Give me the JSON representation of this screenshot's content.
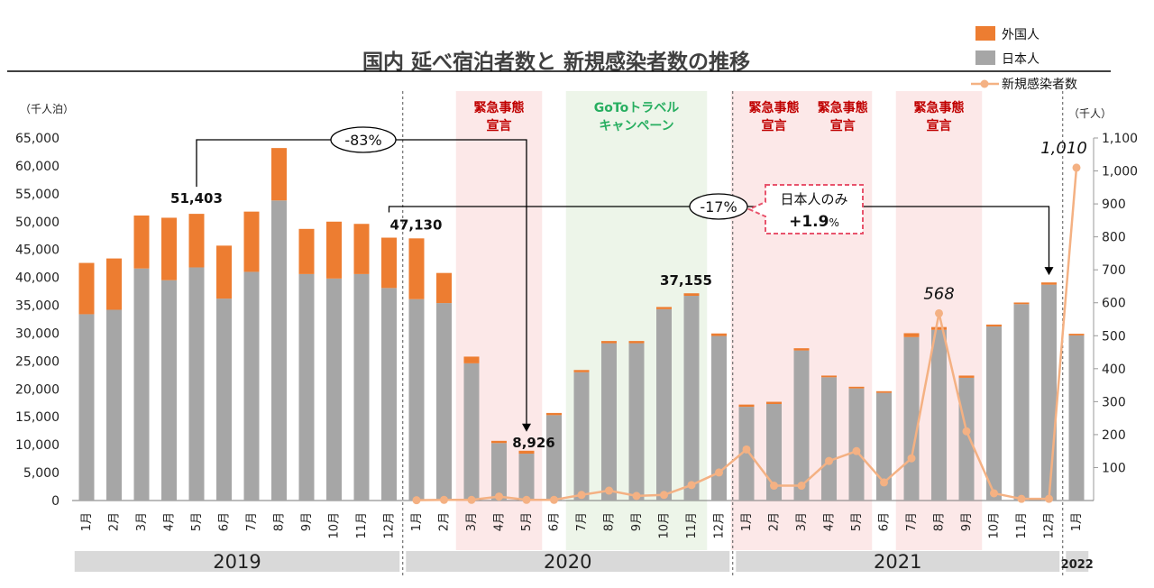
{
  "chart_data": {
    "type": "bar",
    "title": "国内 延べ宿泊者数と 新規感染者数の推移",
    "left_axis_unit": "（千人泊）",
    "right_axis_unit": "（千人）",
    "ylim_left": [
      0,
      65000
    ],
    "ylim_right": [
      0,
      1100
    ],
    "left_ticks": [
      "0",
      "5,000",
      "10,000",
      "15,000",
      "20,000",
      "25,000",
      "30,000",
      "35,000",
      "40,000",
      "45,000",
      "50,000",
      "55,000",
      "60,000",
      "65,000"
    ],
    "right_ticks": [
      "100",
      "200",
      "300",
      "400",
      "500",
      "600",
      "700",
      "800",
      "900",
      "1,000",
      "1,100"
    ],
    "categories": [
      "1月",
      "2月",
      "3月",
      "4月",
      "5月",
      "6月",
      "7月",
      "8月",
      "9月",
      "10月",
      "11月",
      "12月",
      "1月",
      "2月",
      "3月",
      "4月",
      "5月",
      "6月",
      "7月",
      "8月",
      "9月",
      "10月",
      "11月",
      "12月",
      "1月",
      "2月",
      "3月",
      "4月",
      "5月",
      "6月",
      "7月",
      "8月",
      "9月",
      "10月",
      "11月",
      "12月",
      "1月"
    ],
    "years": [
      "2019",
      "2020",
      "2021",
      "2022"
    ],
    "series": [
      {
        "name": "日本人",
        "color": "#a6a6a6",
        "values": [
          33400,
          34200,
          41600,
          39500,
          41800,
          36200,
          41000,
          53800,
          40600,
          39800,
          40600,
          38100,
          36100,
          35400,
          24600,
          10300,
          8400,
          15300,
          23000,
          28200,
          28200,
          34300,
          36700,
          29500,
          16800,
          17300,
          26900,
          22100,
          20100,
          19300,
          29300,
          30600,
          22000,
          31200,
          35200,
          38700,
          29600
        ]
      },
      {
        "name": "外国人",
        "color": "#ed7d31",
        "values": [
          9200,
          9200,
          9500,
          11200,
          9600,
          9500,
          10800,
          9400,
          8100,
          10200,
          9000,
          9030,
          10900,
          5400,
          1200,
          400,
          526,
          400,
          400,
          400,
          400,
          400,
          455,
          450,
          400,
          400,
          400,
          300,
          300,
          300,
          700,
          500,
          400,
          350,
          300,
          400,
          300
        ]
      },
      {
        "name": "新規感染者数",
        "color": "#f4b183",
        "axis": "right",
        "values": [
          null,
          null,
          null,
          null,
          null,
          null,
          null,
          null,
          null,
          null,
          null,
          null,
          1,
          2,
          2,
          12,
          2,
          2,
          17,
          30,
          14,
          17,
          47,
          85,
          155,
          45,
          45,
          120,
          150,
          55,
          128,
          568,
          210,
          22,
          5,
          5,
          1010
        ]
      }
    ],
    "bands": [
      {
        "label": "緊急事態\n宣言",
        "kind": "emergency",
        "from": 14,
        "to": 16
      },
      {
        "label": "GoToトラベル\nキャンペーン",
        "kind": "goto",
        "from": 18,
        "to": 22
      },
      {
        "label": "緊急事態\n宣言",
        "kind": "emergency",
        "from": 24,
        "to": 26
      },
      {
        "label": "緊急事態\n宣言",
        "kind": "emergency",
        "from": 27,
        "to": 28
      },
      {
        "label": "緊急事態\n宣言",
        "kind": "emergency",
        "from": 30,
        "to": 32
      }
    ],
    "annotations": {
      "peak_2019": "51,403",
      "dec_2019": "47,130",
      "may_2020": "8,926",
      "nov_2020": "37,155",
      "drop_pct": "-83%",
      "drop_pct_2": "-17%",
      "jp_only_label": "日本人のみ",
      "jp_only_value": "+1.9",
      "jp_only_unit": "%",
      "cases_aug_2021": "568",
      "cases_jan_2022": "1,010"
    },
    "legend_position": "top-right"
  }
}
